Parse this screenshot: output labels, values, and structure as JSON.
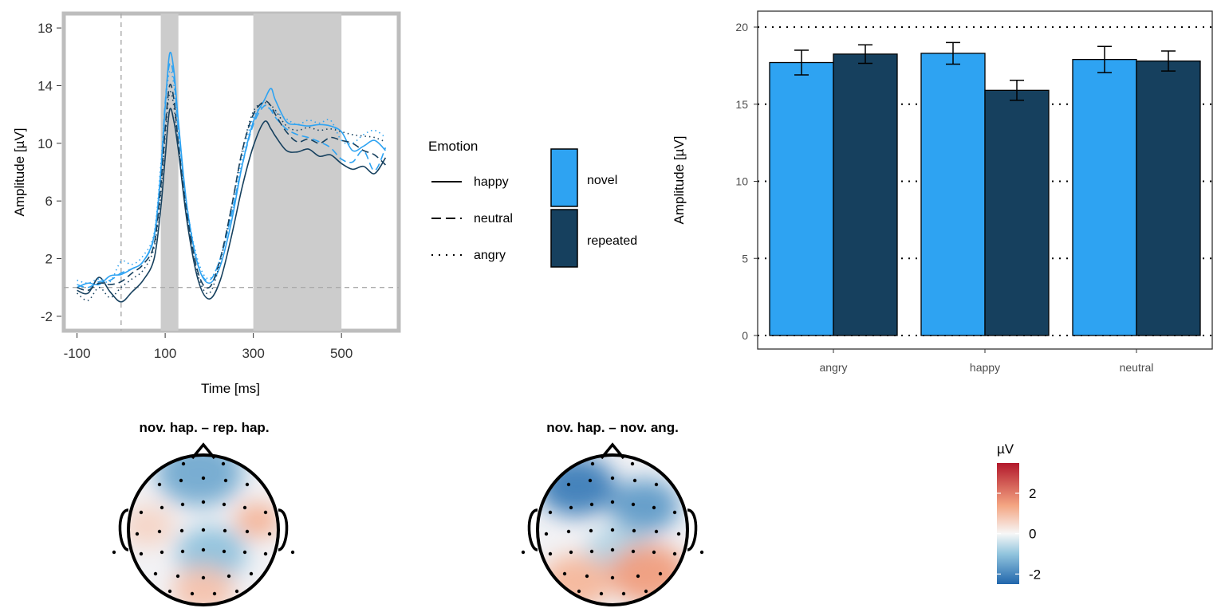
{
  "erp": {
    "ylabel": "Amplitude [µV]",
    "xlabel": "Time [ms]",
    "xticks": [
      -100,
      100,
      300,
      500
    ],
    "yticks": [
      -2,
      2,
      6,
      10,
      14,
      18
    ],
    "xlim": [
      -130,
      630
    ],
    "ylim": [
      -3,
      19
    ],
    "shaded_windows": [
      [
        90,
        130
      ],
      [
        300,
        500
      ]
    ]
  },
  "legend": {
    "emotion_title": "Emotion",
    "emotion_items": [
      {
        "label": "happy",
        "dash": "solid"
      },
      {
        "label": "neutral",
        "dash": "dashed"
      },
      {
        "label": "angry",
        "dash": "dotted"
      }
    ],
    "repetition_items": [
      {
        "label": "novel",
        "color": "#2ea3f2"
      },
      {
        "label": "repeated",
        "color": "#16405e"
      }
    ]
  },
  "bar": {
    "ylabel": "Amplitude [µV]",
    "yticks": [
      0,
      5,
      10,
      15,
      20
    ],
    "ylim": [
      0,
      21
    ]
  },
  "topo": {
    "titles": [
      "nov. hap. – rep. hap.",
      "nov. hap. – nov. ang."
    ],
    "colorbar_title": "µV",
    "colorbar_ticks": [
      "2",
      "0",
      "-2"
    ],
    "colorbar_tick_values": [
      2,
      0,
      -2
    ],
    "colorbar_range": [
      -2.5,
      3.5
    ]
  },
  "chart_data": [
    {
      "type": "line",
      "title": "",
      "xlabel": "Time [ms]",
      "ylabel": "Amplitude [µV]",
      "xlim": [
        -130,
        630
      ],
      "ylim": [
        -3,
        19
      ],
      "grid": false,
      "series": [
        {
          "name": "happy / novel",
          "color": "#2ea3f2",
          "dash": "solid",
          "x": [
            -100,
            -75,
            -50,
            -25,
            0,
            25,
            50,
            75,
            90,
            100,
            110,
            120,
            130,
            150,
            175,
            200,
            225,
            250,
            275,
            300,
            325,
            340,
            350,
            375,
            400,
            425,
            450,
            475,
            500,
            525,
            550,
            575,
            600
          ],
          "y": [
            0.0,
            0.3,
            0.2,
            0.8,
            0.9,
            1.3,
            1.8,
            3.6,
            8.0,
            12.5,
            16.2,
            15.0,
            11.5,
            5.5,
            1.5,
            0.3,
            1.5,
            4.5,
            8.5,
            11.5,
            13.0,
            13.8,
            13.0,
            11.5,
            11.3,
            11.2,
            11.3,
            11.2,
            10.8,
            9.5,
            9.8,
            10.2,
            9.5
          ]
        },
        {
          "name": "happy / repeated",
          "color": "#16405e",
          "dash": "solid",
          "x": [
            -100,
            -75,
            -50,
            -25,
            0,
            25,
            50,
            75,
            90,
            100,
            110,
            120,
            130,
            150,
            175,
            200,
            225,
            250,
            275,
            300,
            325,
            340,
            350,
            375,
            400,
            425,
            450,
            475,
            500,
            525,
            550,
            575,
            600
          ],
          "y": [
            -0.2,
            -0.4,
            0.7,
            -0.3,
            -1.0,
            -0.3,
            0.5,
            2.0,
            5.5,
            9.0,
            12.3,
            11.5,
            9.5,
            4.5,
            0.5,
            -0.8,
            0.5,
            3.5,
            7.0,
            9.8,
            11.5,
            11.0,
            10.5,
            9.5,
            9.4,
            9.6,
            9.1,
            9.2,
            8.6,
            8.2,
            8.4,
            7.9,
            9.0
          ]
        },
        {
          "name": "neutral / novel",
          "color": "#2ea3f2",
          "dash": "dashed",
          "x": [
            -100,
            -75,
            -50,
            -25,
            0,
            25,
            50,
            75,
            90,
            100,
            110,
            120,
            130,
            150,
            175,
            200,
            225,
            250,
            275,
            300,
            325,
            340,
            350,
            375,
            400,
            425,
            450,
            475,
            500,
            525,
            550,
            575,
            600
          ],
          "y": [
            0.2,
            0.0,
            0.4,
            0.5,
            1.0,
            1.3,
            1.8,
            3.5,
            8.0,
            12.8,
            15.5,
            14.5,
            11.0,
            5.5,
            1.5,
            0.5,
            2.0,
            5.0,
            8.5,
            11.3,
            12.6,
            12.3,
            11.8,
            11.0,
            10.6,
            10.4,
            10.1,
            9.7,
            8.9,
            8.7,
            9.5,
            8.1,
            9.7
          ]
        },
        {
          "name": "neutral / repeated",
          "color": "#16405e",
          "dash": "dashed",
          "x": [
            -100,
            -75,
            -50,
            -25,
            0,
            25,
            50,
            75,
            90,
            100,
            110,
            120,
            130,
            150,
            175,
            200,
            225,
            250,
            275,
            300,
            325,
            340,
            350,
            375,
            400,
            425,
            450,
            475,
            500,
            525,
            550,
            575,
            600
          ],
          "y": [
            0.0,
            -0.2,
            0.3,
            0.2,
            0.4,
            1.0,
            1.6,
            3.0,
            7.0,
            11.0,
            14.0,
            13.0,
            10.0,
            5.0,
            1.0,
            0.0,
            2.0,
            5.5,
            9.5,
            12.0,
            12.9,
            12.6,
            12.0,
            10.8,
            10.1,
            10.3,
            10.0,
            10.4,
            10.2,
            10.0,
            9.5,
            9.2,
            8.5
          ]
        },
        {
          "name": "angry / novel",
          "color": "#2ea3f2",
          "dash": "dotted",
          "x": [
            -100,
            -75,
            -50,
            -25,
            0,
            25,
            50,
            75,
            90,
            100,
            110,
            120,
            130,
            150,
            175,
            200,
            225,
            250,
            275,
            300,
            325,
            340,
            350,
            375,
            400,
            425,
            450,
            475,
            500,
            525,
            550,
            575,
            600
          ],
          "y": [
            0.5,
            0.3,
            0.6,
            0.4,
            1.8,
            1.6,
            2.2,
            3.8,
            8.5,
            12.5,
            15.0,
            14.0,
            10.8,
            5.5,
            1.8,
            0.6,
            2.0,
            5.0,
            9.0,
            11.8,
            12.6,
            12.3,
            12.2,
            11.7,
            11.3,
            11.6,
            11.4,
            11.6,
            10.2,
            10.0,
            10.6,
            10.9,
            10.4
          ]
        },
        {
          "name": "angry / repeated",
          "color": "#16405e",
          "dash": "dotted",
          "x": [
            -100,
            -75,
            -50,
            -25,
            0,
            25,
            50,
            75,
            90,
            100,
            110,
            120,
            130,
            150,
            175,
            200,
            225,
            250,
            275,
            300,
            325,
            340,
            350,
            375,
            400,
            425,
            450,
            475,
            500,
            525,
            550,
            575,
            600
          ],
          "y": [
            -0.4,
            -0.9,
            0.0,
            -0.7,
            0.0,
            0.6,
            1.2,
            2.8,
            6.5,
            10.5,
            13.5,
            12.5,
            9.8,
            4.8,
            0.8,
            -0.4,
            1.8,
            5.5,
            9.5,
            12.2,
            12.8,
            12.6,
            12.3,
            11.2,
            10.9,
            11.1,
            10.9,
            11.0,
            10.8,
            10.6,
            10.5,
            10.4,
            10.1
          ]
        }
      ]
    },
    {
      "type": "bar",
      "title": "",
      "xlabel": "",
      "ylabel": "Amplitude [µV]",
      "ylim": [
        0,
        21
      ],
      "grid": true,
      "categories": [
        "angry",
        "happy",
        "neutral"
      ],
      "series": [
        {
          "name": "novel",
          "color": "#2ea3f2",
          "values": [
            17.7,
            18.3,
            17.9
          ],
          "error": [
            0.8,
            0.7,
            0.85
          ]
        },
        {
          "name": "repeated",
          "color": "#16405e",
          "values": [
            18.25,
            15.9,
            17.8
          ],
          "error": [
            0.6,
            0.65,
            0.65
          ]
        }
      ]
    },
    {
      "type": "heatmap",
      "title": "nov. hap. – rep. hap.",
      "value_range": [
        -2.5,
        3.5
      ],
      "blobs": [
        {
          "region": "frontal",
          "value": -1.6
        },
        {
          "region": "left-temporal",
          "value": 0.6
        },
        {
          "region": "right-temporal",
          "value": 1.2
        },
        {
          "region": "right-central",
          "value": -1.3
        },
        {
          "region": "occipital",
          "value": 0.9
        }
      ]
    },
    {
      "type": "heatmap",
      "title": "nov. hap. – nov. ang.",
      "value_range": [
        -2.5,
        3.5
      ],
      "blobs": [
        {
          "region": "left-frontal",
          "value": -2.2
        },
        {
          "region": "right-frontal",
          "value": -1.8
        },
        {
          "region": "right-central",
          "value": -0.9
        },
        {
          "region": "left-occipital",
          "value": 1.1
        },
        {
          "region": "right-occipital",
          "value": 1.5
        }
      ]
    }
  ]
}
